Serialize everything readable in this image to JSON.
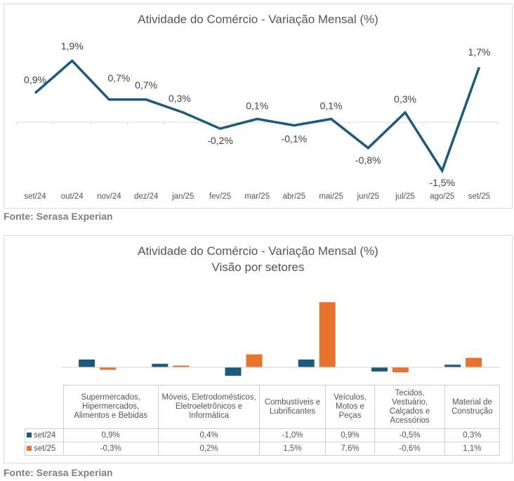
{
  "chart_data": [
    {
      "type": "line",
      "title": "Atividade do Comércio  - Variação Mensal (%)",
      "categories": [
        "set/24",
        "out/24",
        "nov/24",
        "dez/24",
        "jan/25",
        "fev/25",
        "mar/25",
        "abr/25",
        "mai/25",
        "jun/25",
        "jul/25",
        "ago/25",
        "set/25"
      ],
      "values": [
        0.9,
        1.9,
        0.7,
        0.7,
        0.3,
        -0.2,
        0.1,
        -0.1,
        0.1,
        -0.8,
        0.3,
        -1.5,
        1.7
      ],
      "labels": [
        "0,9%",
        "1,9%",
        "0,7%",
        "0,7%",
        "0,3%",
        "-0,2%",
        "0,1%",
        "-0,1%",
        "0,1%",
        "-0,8%",
        "0,3%",
        "-1,5%",
        "1,7%"
      ],
      "color": "#1b5a78",
      "source": "Fonte: Serasa Experian"
    },
    {
      "type": "bar",
      "title": "Atividade do Comércio  - Variação Mensal (%)",
      "subtitle": "Visão por setores",
      "categories": [
        "Supermercados, Hipermercados, Alimentos e Bebidas",
        "Móveis, Eletrodomésticos, Eletroeletrônicos e Informática",
        "Combustíveis e Lubrificantes",
        "Veículos, Motos e Peças",
        "Tecidos, Vestuário, Calçados e Acessórios",
        "Material de Construção"
      ],
      "series": [
        {
          "name": "set/24",
          "color": "#1b5a78",
          "values": [
            0.9,
            0.4,
            -1.0,
            0.9,
            -0.5,
            0.3
          ],
          "labels": [
            "0,9%",
            "0,4%",
            "-1,0%",
            "0,9%",
            "-0,5%",
            "0,3%"
          ]
        },
        {
          "name": "set/25",
          "color": "#e8732f",
          "values": [
            -0.3,
            0.2,
            1.5,
            7.6,
            -0.6,
            1.1
          ],
          "labels": [
            "-0,3%",
            "0,2%",
            "1,5%",
            "7,6%",
            "-0,6%",
            "1,1%"
          ]
        }
      ],
      "source": "Fonte: Serasa Experian"
    }
  ]
}
